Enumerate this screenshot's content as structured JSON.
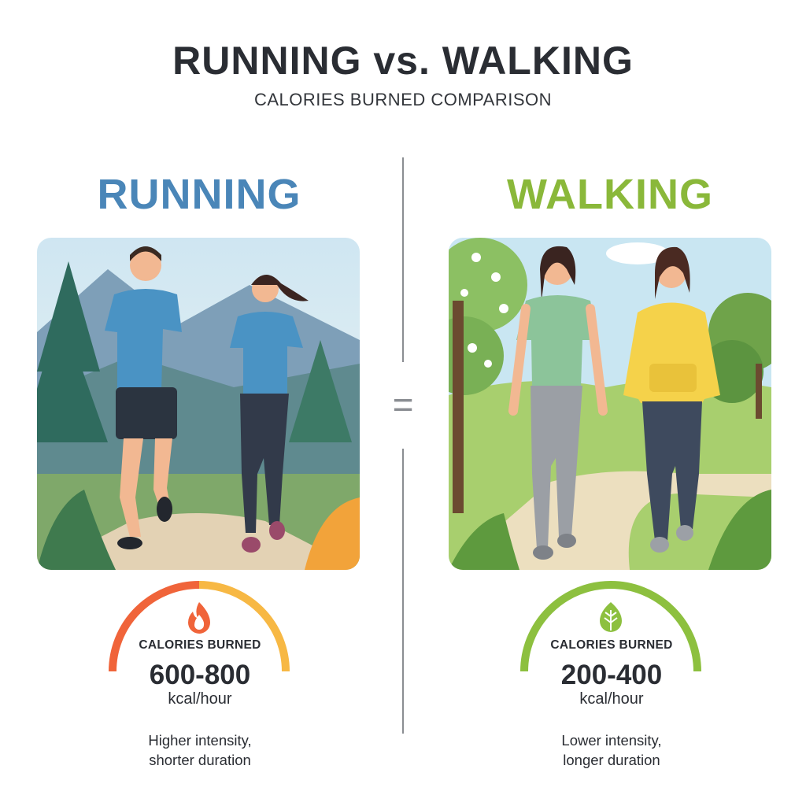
{
  "header": {
    "title": "RUNNING vs. WALKING",
    "subtitle": "CALORIES BURNED COMPARISON"
  },
  "separator": {
    "symbol": "="
  },
  "running": {
    "heading": "RUNNING",
    "color": "#4a86b8",
    "icon": "flame-icon",
    "gauge_colors": [
      "#f0643a",
      "#f7b844"
    ],
    "calories_label": "CALORIES BURNED",
    "calories_value": "600-800",
    "unit": "kcal/hour",
    "description": [
      "Higher intensity,",
      "shorter duration"
    ]
  },
  "walking": {
    "heading": "WALKING",
    "color": "#8ab83a",
    "icon": "leaf-icon",
    "gauge_colors": [
      "#8dc03f"
    ],
    "calories_label": "CALORIES BURNED",
    "calories_value": "200-400",
    "unit": "kcal/hour",
    "description": [
      "Lower intensity,",
      "longer duration"
    ]
  }
}
